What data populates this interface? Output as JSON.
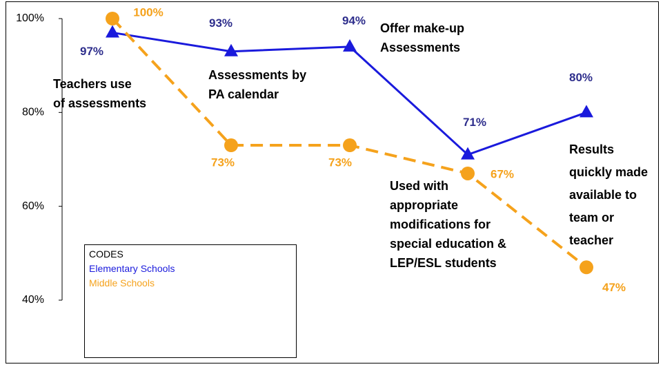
{
  "chart_data": {
    "type": "line",
    "categories": [
      "Teachers use\nof assessments",
      "Assessments  by\nPA calendar",
      "Offer make-up\nAssessments",
      "Used with\nappropriate\nmodifications for\nspecial education &\nLEP/ESL students",
      "Results\nquickly made\navailable to\nteam or\nteacher"
    ],
    "series": [
      {
        "name": "Elementary Schools",
        "color": "#1a1adc",
        "values": [
          97,
          93,
          94,
          71,
          80
        ],
        "value_labels": [
          "97%",
          "93%",
          "94%",
          "71%",
          "80%"
        ]
      },
      {
        "name": "Middle Schools",
        "color": "#f5a21c",
        "values": [
          100,
          73,
          73,
          67,
          47
        ],
        "value_labels": [
          "100%",
          "73%",
          "73%",
          "67%",
          "47%"
        ]
      }
    ],
    "legend_title": "CODES",
    "ylim": [
      40,
      100
    ],
    "yticks": [
      {
        "value": 40,
        "label": "40%"
      },
      {
        "value": 60,
        "label": "60%"
      },
      {
        "value": 80,
        "label": "80%"
      },
      {
        "value": 100,
        "label": "100%"
      }
    ],
    "grid": false
  }
}
